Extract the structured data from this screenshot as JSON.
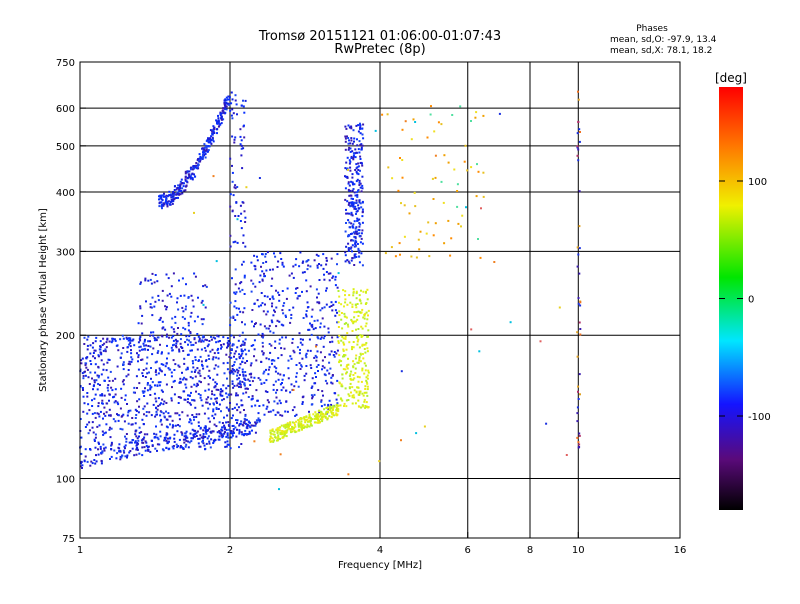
{
  "chart_data": {
    "type": "scatter",
    "title": "Tromsø 20151121 01:06:00-01:07:43",
    "subtitle": "RwPretec (8p)",
    "xlabel": "Frequency [MHz]",
    "ylabel": "Stationary phase Virtual Height [km]",
    "x_scale": "log",
    "y_scale": "log",
    "xlim": [
      1,
      16
    ],
    "ylim": [
      75,
      750
    ],
    "x_ticks": [
      1,
      2,
      4,
      6,
      8,
      10,
      16
    ],
    "x_tick_labels": [
      "1",
      "2",
      "4",
      "6",
      "8",
      "10",
      "16"
    ],
    "y_ticks": [
      75,
      100,
      200,
      300,
      400,
      500,
      600,
      750
    ],
    "y_tick_labels": [
      "75",
      "100",
      "200",
      "300",
      "400",
      "500",
      "600",
      "750"
    ],
    "grid": true,
    "stats": {
      "heading": "Phases",
      "line_o": "mean, sd,O: -97.9, 13.4",
      "line_x": "mean, sd,X:  78.1, 18.2"
    },
    "colorbar": {
      "label": "[deg]",
      "range": [
        -180,
        180
      ],
      "ticks": [
        100,
        0,
        -100
      ],
      "tick_labels": [
        "100",
        "0",
        "-100"
      ]
    },
    "clusters": [
      {
        "name": "E-layer trace",
        "f_range": [
          1.0,
          2.3
        ],
        "h_start": 110,
        "h_end": 130,
        "color": "#0a1ee6"
      },
      {
        "name": "Low F-region blue cloud",
        "f_range": [
          1.0,
          2.2
        ],
        "h_range": [
          115,
          270
        ],
        "color": "#1630f0"
      },
      {
        "name": "High F2 blue trace",
        "f_range": [
          1.45,
          2.05
        ],
        "h_start": 380,
        "h_end": 640,
        "color": "#1a22d8"
      },
      {
        "name": "Mid blue/purple trace",
        "f_range": [
          2.5,
          3.7
        ],
        "h_range": [
          140,
          560
        ],
        "color": "#2a1ad0"
      },
      {
        "name": "Yellow-green trace",
        "f_range": [
          2.3,
          3.8
        ],
        "h_range": [
          120,
          250
        ],
        "color": "#c8f020"
      },
      {
        "name": "Upper yellow speckle",
        "f_range": [
          4.0,
          5.8
        ],
        "h_range": [
          280,
          620
        ],
        "color": "#f0e020"
      },
      {
        "name": "10 MHz artifact column",
        "f_range": [
          9.9,
          10.2
        ],
        "h_range": [
          100,
          650
        ],
        "color": "#b0306a"
      }
    ]
  }
}
